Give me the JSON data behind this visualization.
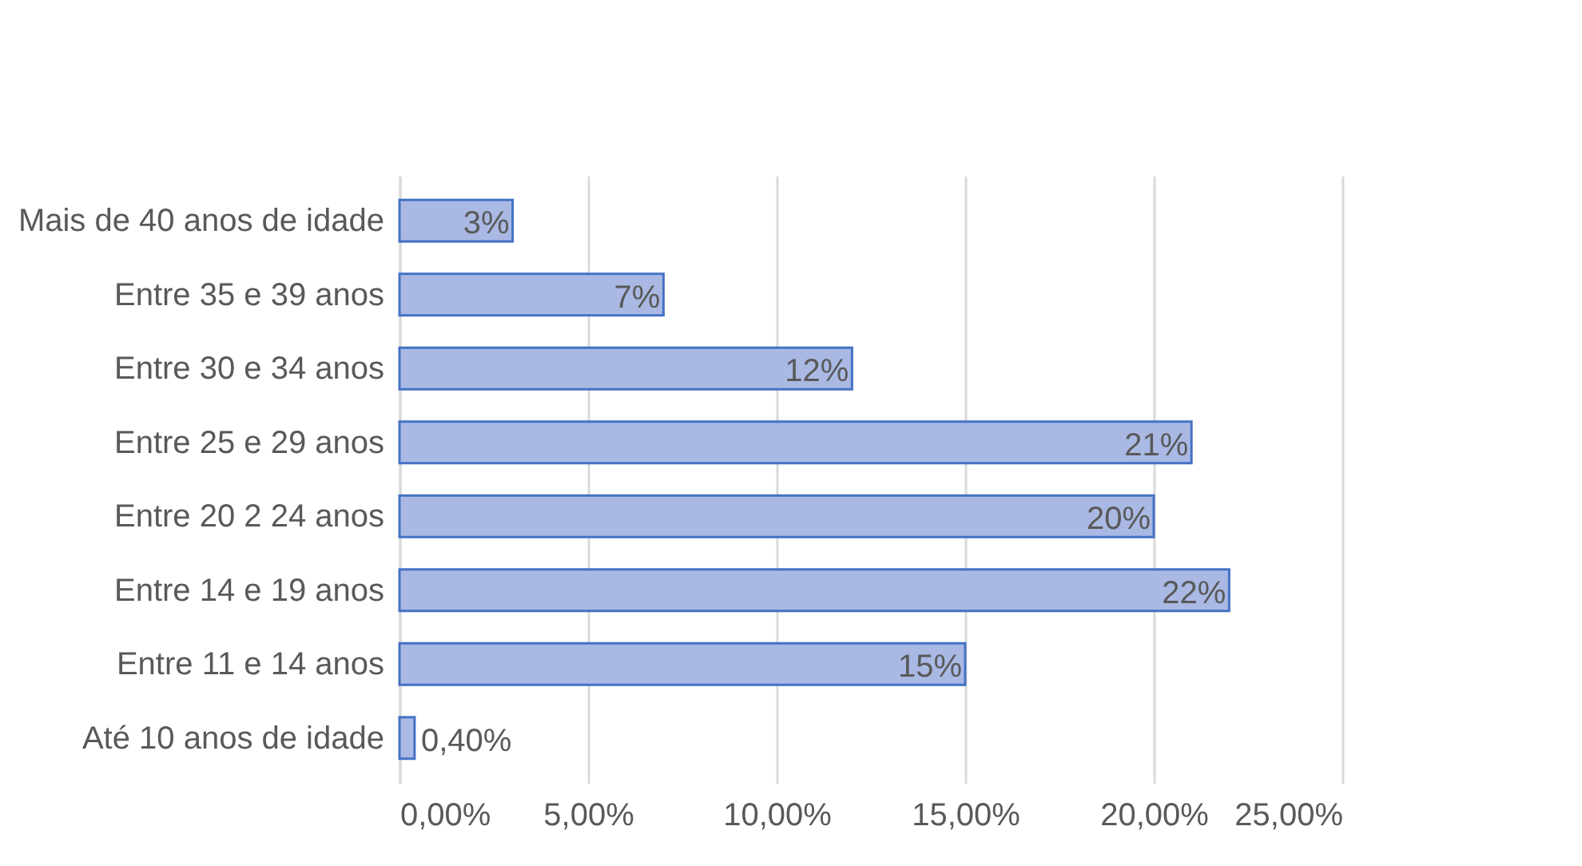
{
  "chart_data": {
    "type": "bar",
    "orientation": "horizontal",
    "categories": [
      "Mais de 40 anos de idade",
      "Entre 35 e 39 anos",
      "Entre 30 e 34 anos",
      "Entre 25 e 29 anos",
      "Entre 20 2 24 anos",
      "Entre 14 e 19 anos",
      "Entre 11 e 14 anos",
      "Até 10 anos de idade"
    ],
    "values": [
      3,
      7,
      12,
      21,
      20,
      22,
      15,
      0.4
    ],
    "value_labels": [
      "3%",
      "7%",
      "12%",
      "21%",
      "20%",
      "22%",
      "15%",
      "0,40%"
    ],
    "color": "#a9b9e4",
    "xlim": [
      0,
      25
    ],
    "xticks": [
      {
        "value": 0,
        "label": "0,00%"
      },
      {
        "value": 5,
        "label": "5,00%"
      },
      {
        "value": 10,
        "label": "10,00%"
      },
      {
        "value": 15,
        "label": "15,00%"
      },
      {
        "value": 20,
        "label": "20,00%"
      },
      {
        "value": 25,
        "label": "25,00%"
      }
    ],
    "grid": "x"
  }
}
